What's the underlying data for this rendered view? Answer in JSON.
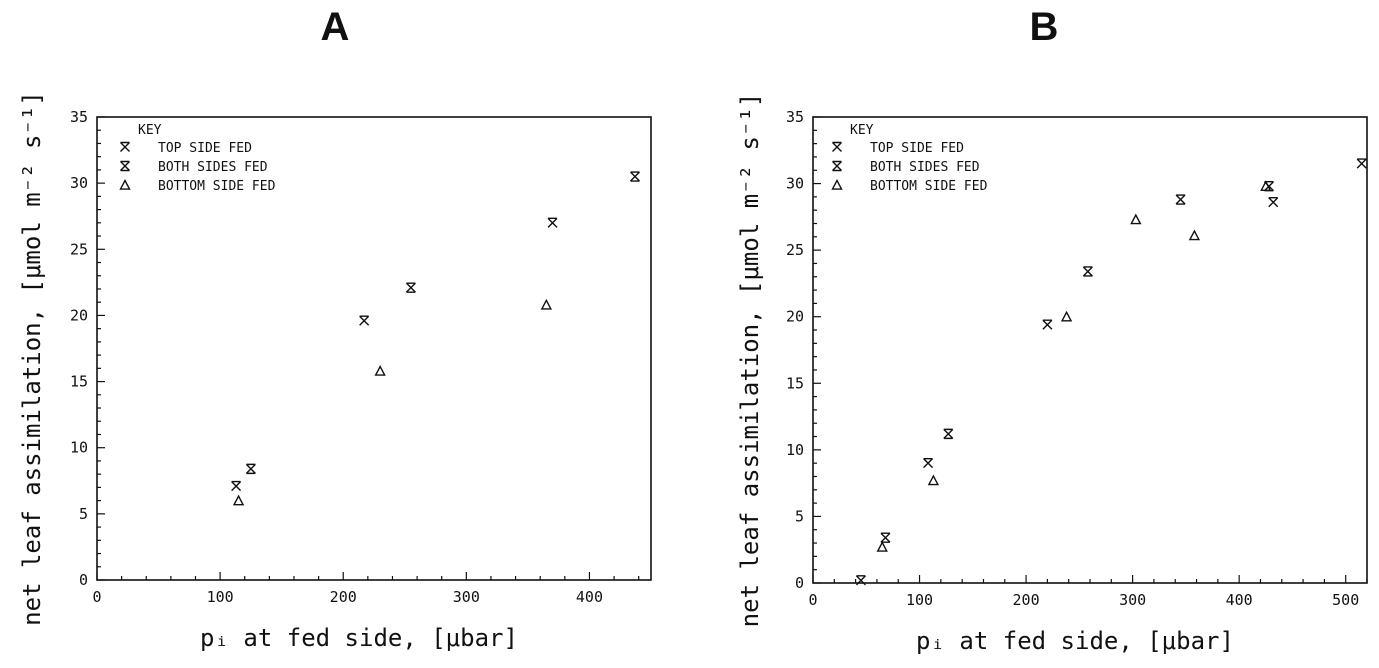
{
  "chart_data": [
    {
      "type": "scatter",
      "title": "A",
      "xlabel": "pᵢ at fed side, [μbar]",
      "ylabel": "net leaf assimilation, [μmol m⁻² s⁻¹]",
      "xlim": [
        0,
        450
      ],
      "ylim": [
        0,
        35
      ],
      "xticks": [
        "0",
        "100",
        "200",
        "300",
        "400"
      ],
      "yticks": [
        "0",
        "5",
        "10",
        "15",
        "20",
        "25",
        "30",
        "35"
      ],
      "legend": {
        "title": "KEY",
        "position": "top-left"
      },
      "series": [
        {
          "name": "TOP SIDE FED",
          "marker": "top",
          "points": [
            [
              113,
              7.1
            ],
            [
              217,
              19.6
            ],
            [
              370,
              27.0
            ]
          ]
        },
        {
          "name": "BOTH SIDES FED",
          "marker": "both",
          "points": [
            [
              125,
              8.4
            ],
            [
              255,
              22.1
            ],
            [
              437,
              30.5
            ]
          ]
        },
        {
          "name": "BOTTOM SIDE FED",
          "marker": "triangle",
          "points": [
            [
              115,
              6.0
            ],
            [
              230,
              15.8
            ],
            [
              365,
              20.8
            ]
          ]
        }
      ]
    },
    {
      "type": "scatter",
      "title": "B",
      "xlabel": "pᵢ at fed side, [μbar]",
      "ylabel": "net leaf assimilation, [μmol m⁻² s⁻¹]",
      "xlim": [
        0,
        520
      ],
      "ylim": [
        0,
        35
      ],
      "xticks": [
        "0",
        "100",
        "200",
        "300",
        "400",
        "500"
      ],
      "yticks": [
        "0",
        "5",
        "10",
        "15",
        "20",
        "25",
        "30",
        "35"
      ],
      "legend": {
        "title": "KEY",
        "position": "top-left"
      },
      "series": [
        {
          "name": "TOP SIDE FED",
          "marker": "top",
          "points": [
            [
              45,
              0.2
            ],
            [
              108,
              9.0
            ],
            [
              220,
              19.4
            ],
            [
              432,
              28.6
            ],
            [
              515,
              31.5
            ]
          ]
        },
        {
          "name": "BOTH SIDES FED",
          "marker": "both",
          "points": [
            [
              68,
              3.4
            ],
            [
              127,
              11.2
            ],
            [
              258,
              23.4
            ],
            [
              345,
              28.8
            ],
            [
              428,
              29.8
            ]
          ]
        },
        {
          "name": "BOTTOM SIDE FED",
          "marker": "triangle",
          "points": [
            [
              65,
              2.7
            ],
            [
              113,
              7.7
            ],
            [
              238,
              20.0
            ],
            [
              303,
              27.3
            ],
            [
              358,
              26.1
            ],
            [
              425,
              29.8
            ]
          ]
        }
      ]
    }
  ]
}
